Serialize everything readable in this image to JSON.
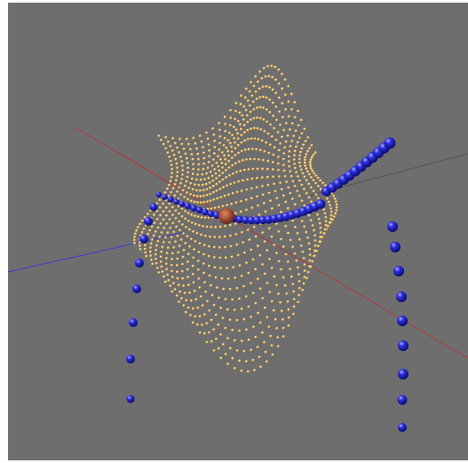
{
  "scene": {
    "background_color": "#6e6e6e",
    "axis_colors": {
      "x": "#b23a3a",
      "y": "#3a3ad0",
      "z": "#555555"
    },
    "surface_color": "#f2c670",
    "curve_color": "#2020c8",
    "origin_marker_color": "#b5502e",
    "icons": [
      "axis-x-line",
      "axis-y-line",
      "axis-z-line",
      "surface-point-cloud",
      "curve-spheres",
      "origin-marker"
    ]
  }
}
